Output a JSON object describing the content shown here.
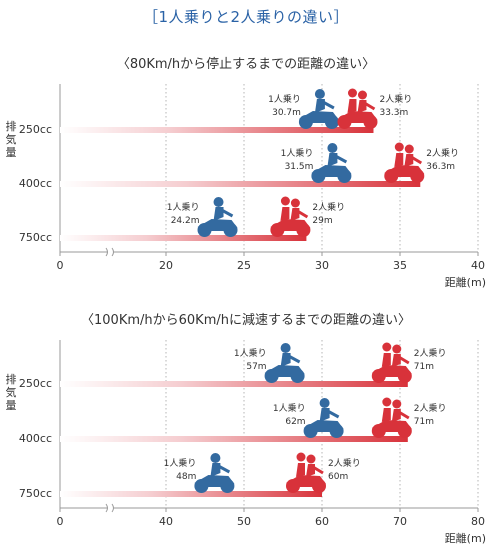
{
  "page_title": "［1人乗りと2人乗りの違い］",
  "colors": {
    "single_rider": "#336aa0",
    "two_rider": "#d8323a",
    "axis": "#999999",
    "grid": "#b5b5b5",
    "title": "#2a62a6"
  },
  "icons": {
    "single_rider": "single-rider-motorcycle-icon",
    "two_rider": "two-rider-motorcycle-icon"
  },
  "chart_data": [
    {
      "type": "bar",
      "title": "〈80Km/hから停止するまでの距離の違い〉",
      "ylabel": "排気量",
      "xlabel": "距離(m)",
      "x_ticks": [
        "0",
        "20",
        "25",
        "30",
        "35",
        "40"
      ],
      "axis_break": true,
      "xlim": [
        20,
        40
      ],
      "categories": [
        "250cc",
        "400cc",
        "750cc"
      ],
      "series": [
        {
          "values": [
            30.7,
            31.5,
            24.2
          ],
          "labels": [
            "1人乗り\n30.7m",
            "1人乗り\n31.5m",
            "1人乗り\n24.2m"
          ]
        },
        {
          "values": [
            33.3,
            36.3,
            29
          ],
          "labels": [
            "2人乗り\n33.3m",
            "2人乗り\n36.3m",
            "2人乗り\n29m"
          ]
        }
      ],
      "grid": true
    },
    {
      "type": "bar",
      "title": "〈100Km/hから60Km/hに減速するまでの距離の違い〉",
      "ylabel": "排気量",
      "xlabel": "距離(m)",
      "x_ticks": [
        "0",
        "40",
        "50",
        "60",
        "70",
        "80"
      ],
      "axis_break": true,
      "xlim": [
        40,
        80
      ],
      "categories": [
        "250cc",
        "400cc",
        "750cc"
      ],
      "series": [
        {
          "values": [
            57,
            62,
            48
          ],
          "labels": [
            "1人乗り\n57m",
            "1人乗り\n62m",
            "1人乗り\n48m"
          ]
        },
        {
          "values": [
            71,
            71,
            60
          ],
          "labels": [
            "2人乗り\n71m",
            "2人乗り\n71m",
            "2人乗り\n60m"
          ]
        }
      ],
      "grid": true
    }
  ]
}
